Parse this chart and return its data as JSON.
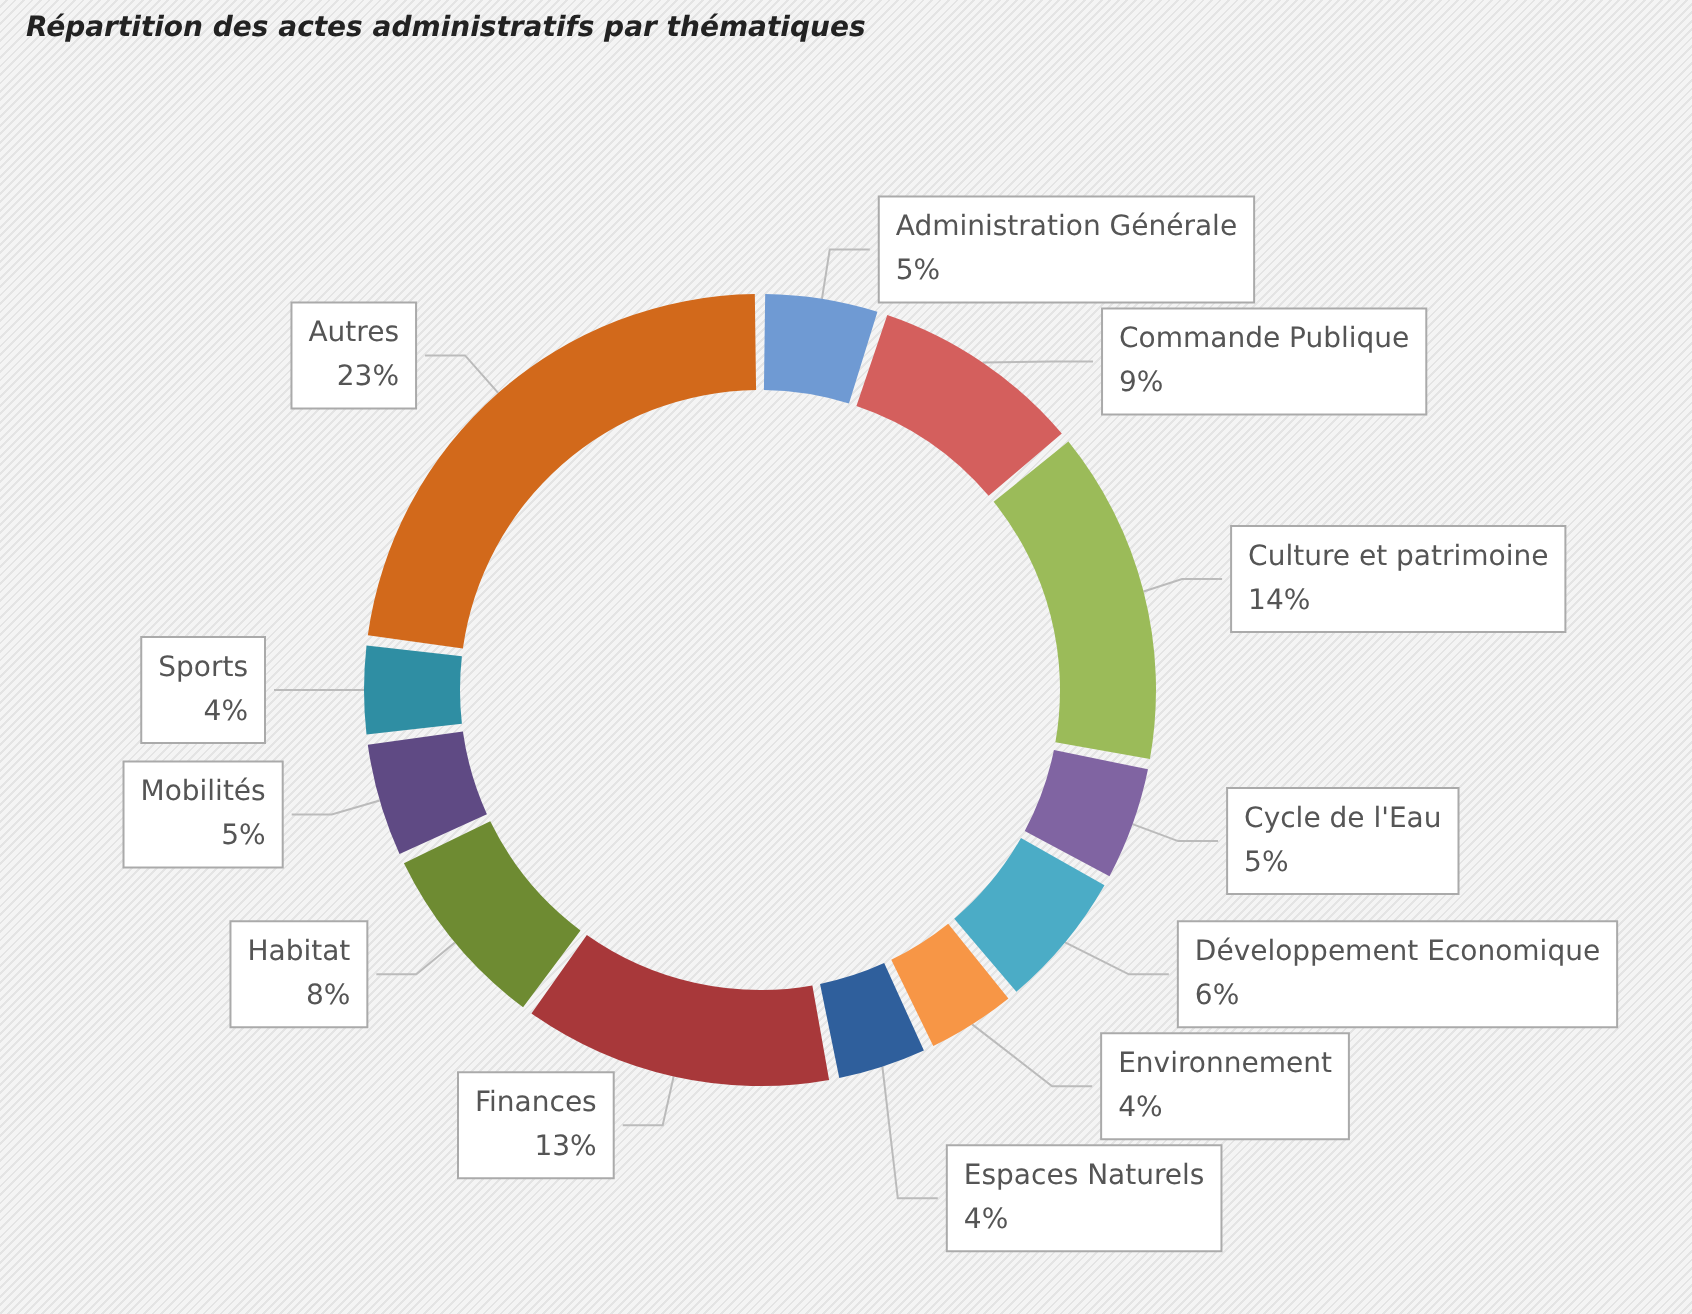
{
  "chart_data": {
    "type": "donut",
    "title": "Répartition des actes administratifs par thématiques",
    "categories": [
      "Administration Générale",
      "Commande Publique",
      "Culture et patrimoine",
      "Cycle de l'Eau",
      "Développement Economique",
      "Environnement",
      "Espaces Naturels",
      "Finances",
      "Habitat",
      "Mobilités",
      "Sports",
      "Autres"
    ],
    "values": [
      5,
      9,
      14,
      5,
      6,
      4,
      4,
      13,
      8,
      5,
      4,
      23
    ],
    "value_labels": [
      "5%",
      "9%",
      "14%",
      "5%",
      "6%",
      "4%",
      "4%",
      "13%",
      "8%",
      "5%",
      "4%",
      "23%"
    ],
    "colors": [
      "#6f9ad3",
      "#d45f5d",
      "#9bbb59",
      "#8064a2",
      "#4bacc6",
      "#f79646",
      "#2f5f9c",
      "#a8383a",
      "#6e8b32",
      "#5f4a84",
      "#2f8ea3",
      "#d2691b"
    ],
    "legend": false
  }
}
